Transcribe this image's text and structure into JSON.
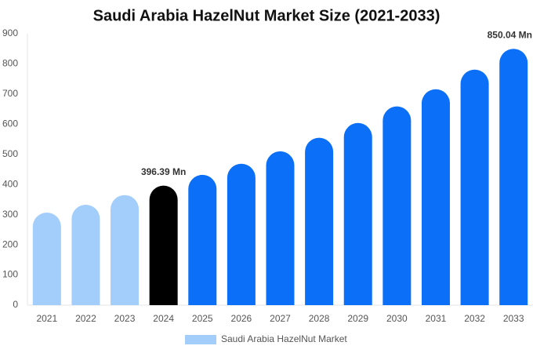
{
  "chart_data": {
    "type": "bar",
    "title": "Saudi Arabia HazelNut Market Size (2021-2033)",
    "categories": [
      "2021",
      "2022",
      "2023",
      "2024",
      "2025",
      "2026",
      "2027",
      "2028",
      "2029",
      "2030",
      "2031",
      "2032",
      "2033"
    ],
    "series": [
      {
        "name": "Saudi Arabia HazelNut Market",
        "color": "#a3cdfb",
        "values": [
          307,
          333,
          365,
          396.39,
          432,
          469,
          510,
          555,
          604,
          659,
          716,
          781,
          850.04
        ],
        "value_labels": [
          null,
          null,
          null,
          "396.39 Mn",
          null,
          null,
          null,
          null,
          null,
          null,
          null,
          null,
          "850.04 Mn"
        ],
        "colors": [
          "#a3cdfb",
          "#a3cdfb",
          "#a3cdfb",
          "#000000",
          "#0b6ff7",
          "#0b6ff7",
          "#0b6ff7",
          "#0b6ff7",
          "#0b6ff7",
          "#0b6ff7",
          "#0b6ff7",
          "#0b6ff7",
          "#0b6ff7"
        ]
      }
    ],
    "ylim": [
      0,
      900
    ],
    "yticks": [
      0,
      100,
      200,
      300,
      400,
      500,
      600,
      700,
      800,
      900
    ],
    "grid": false
  }
}
